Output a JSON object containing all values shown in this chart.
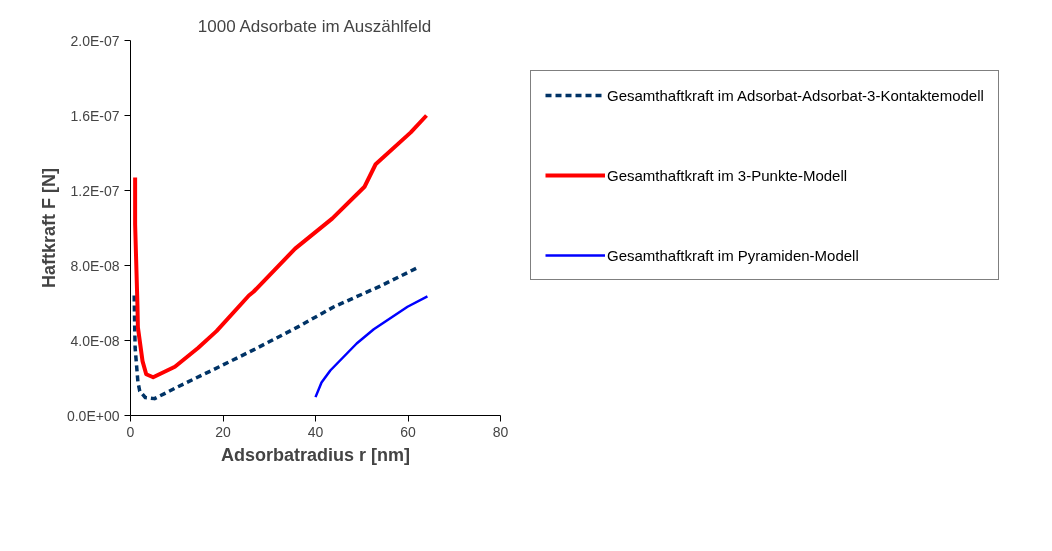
{
  "chart_data": {
    "type": "line",
    "title": "1000 Adsorbate im Auszählfeld",
    "xlabel": "Adsorbatradius r [nm]",
    "ylabel": "Haftkraft F [N]",
    "xlim": [
      0,
      80
    ],
    "xticks": [
      0,
      20,
      40,
      60,
      80
    ],
    "ylim": [
      0,
      2e-07
    ],
    "yticks": [
      {
        "value": 0,
        "label": "0.0E+00"
      },
      {
        "value": 4e-08,
        "label": "4.0E-08"
      },
      {
        "value": 8e-08,
        "label": "8.0E-08"
      },
      {
        "value": 1.2e-07,
        "label": "1.2E-07"
      },
      {
        "value": 1.6e-07,
        "label": "1.6E-07"
      },
      {
        "value": 2e-07,
        "label": "2.0E-07"
      }
    ],
    "grid": false,
    "legend": "right",
    "series": [
      {
        "name": "Gesamthaftkraft im Adsorbat-Adsorbat-3-Kontaktemodell",
        "color": "#003366",
        "line_style": "dashed",
        "x": [
          0.8,
          0.9,
          1.0,
          1.6,
          2.0,
          3.2,
          5.2,
          10,
          19.2,
          26.6,
          36,
          44,
          54,
          62.2
        ],
        "values": [
          6.4e-08,
          4.85e-08,
          3.6e-08,
          1.8e-08,
          1.3e-08,
          9.6e-09,
          9e-09,
          1.5e-08,
          2.6e-08,
          3.5e-08,
          4.7e-08,
          5.8e-08,
          6.9e-08,
          7.9e-08
        ]
      },
      {
        "name": "Gesamthaftkraft im 3-Punkte-Modell",
        "color": "#ff0000",
        "line_style": "solid",
        "x": [
          1.0,
          1.0,
          1.5,
          1.6,
          2.6,
          3.4,
          4.9,
          9.6,
          14.6,
          18.6,
          25.6,
          26.6,
          35.6,
          43.6,
          50.6,
          53,
          60.6,
          64
        ],
        "values": [
          1.27e-07,
          1.02e-07,
          5.9e-08,
          4.7e-08,
          2.9e-08,
          2.2e-08,
          2.04e-08,
          2.6e-08,
          3.6e-08,
          4.5e-08,
          6.4e-08,
          6.6e-08,
          8.9e-08,
          1.05e-07,
          1.22e-07,
          1.34e-07,
          1.51e-07,
          1.6e-07
        ]
      },
      {
        "name": "Gesamthaftkraft im Pyramiden-Modell",
        "color": "#0000ff",
        "line_style": "solid",
        "x": [
          40,
          41.3,
          43.2,
          48.9,
          52.6,
          59.9,
          64.2
        ],
        "values": [
          9.8e-09,
          1.76e-08,
          2.4e-08,
          3.84e-08,
          4.6e-08,
          5.8e-08,
          6.35e-08
        ]
      }
    ]
  }
}
